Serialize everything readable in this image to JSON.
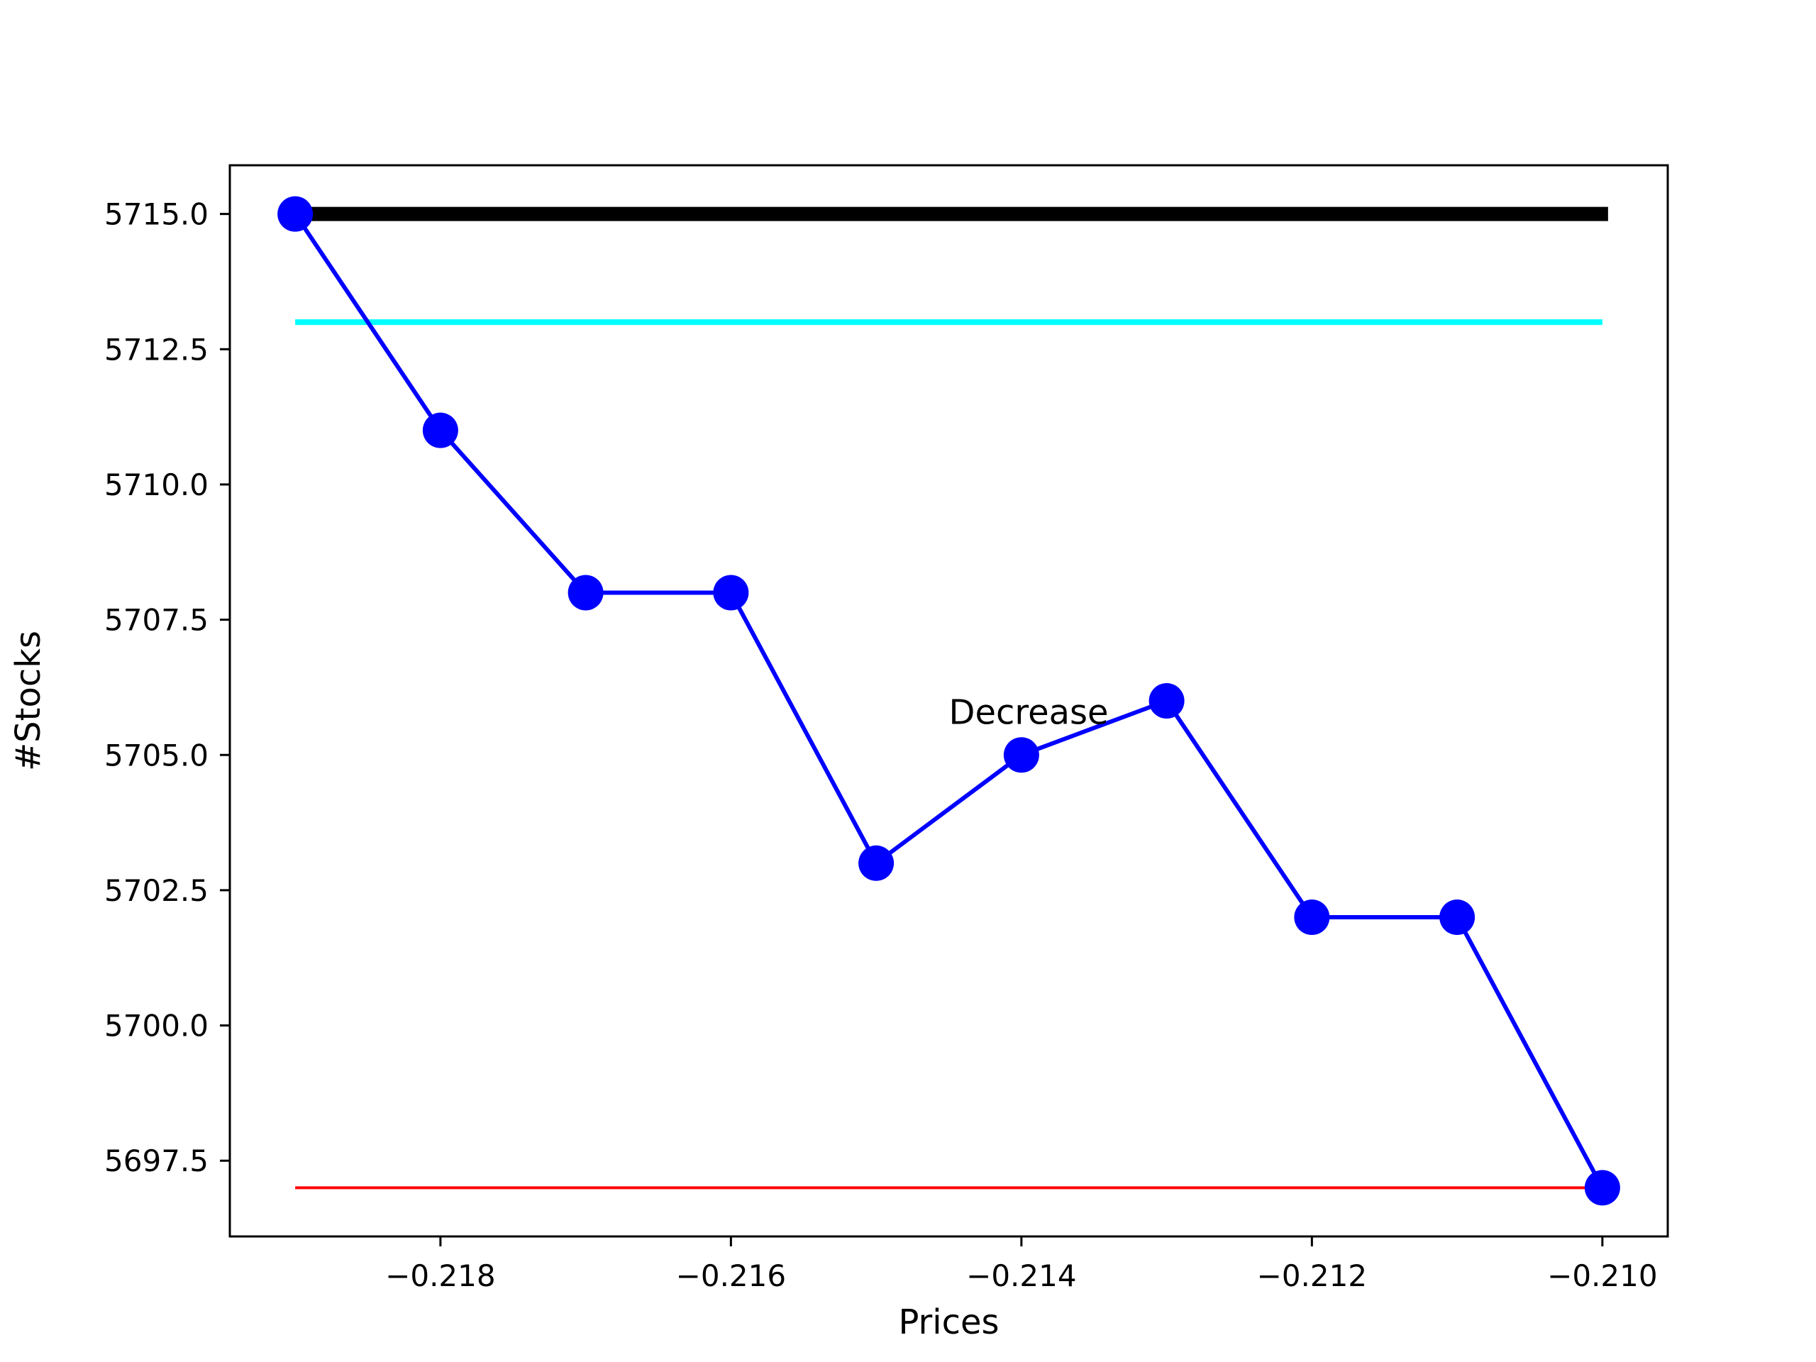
{
  "chart_data": {
    "type": "line",
    "title": "",
    "xlabel": "Prices",
    "ylabel": "#Stocks",
    "xlim": [
      -0.21945,
      -0.20955
    ],
    "ylim": [
      5696.1,
      5715.9
    ],
    "x_ticks": [
      -0.218,
      -0.216,
      -0.214,
      -0.212,
      -0.21
    ],
    "x_tick_labels": [
      "−0.218",
      "−0.216",
      "−0.214",
      "−0.212",
      "−0.210"
    ],
    "y_ticks": [
      5697.5,
      5700.0,
      5702.5,
      5705.0,
      5707.5,
      5710.0,
      5712.5,
      5715.0
    ],
    "y_tick_labels": [
      "5697.5",
      "5700.0",
      "5702.5",
      "5705.0",
      "5707.5",
      "5710.0",
      "5712.5",
      "5715.0"
    ],
    "grid": false,
    "series": [
      {
        "color": "#0000ff",
        "marker": "circle",
        "x": [
          -0.219,
          -0.218,
          -0.217,
          -0.216,
          -0.215,
          -0.214,
          -0.213,
          -0.212,
          -0.211,
          -0.21
        ],
        "y": [
          5715,
          5711,
          5708,
          5708,
          5703,
          5705,
          5706,
          5702,
          5702,
          5697
        ]
      }
    ],
    "reference_lines": [
      {
        "y": 5715,
        "x_range": [
          -0.219,
          -0.21
        ],
        "color": "#000000",
        "style": "thick"
      },
      {
        "y": 5713,
        "x_range": [
          -0.219,
          -0.21
        ],
        "color": "#00ffff",
        "style": "medium"
      },
      {
        "y": 5697,
        "x_range": [
          -0.219,
          -0.21
        ],
        "color": "#ff0000",
        "style": "thin"
      }
    ],
    "annotations": [
      {
        "text": "Decrease",
        "x": -0.2145,
        "y": 5705.8
      }
    ]
  }
}
